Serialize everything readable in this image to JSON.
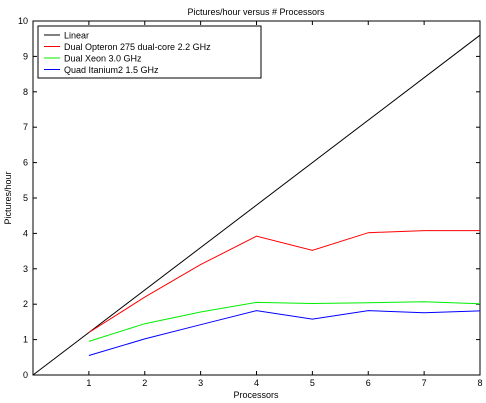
{
  "chart_data": {
    "type": "line",
    "title": "Pictures/hour versus # Processors",
    "xlabel": "Processors",
    "ylabel": "Pictures/hour",
    "xlim": [
      0,
      8
    ],
    "ylim": [
      0,
      10
    ],
    "xticks": [
      1,
      2,
      3,
      4,
      5,
      6,
      7,
      8
    ],
    "yticks": [
      0,
      1,
      2,
      3,
      4,
      5,
      6,
      7,
      8,
      9,
      10
    ],
    "grid": false,
    "legend_position": "top-left",
    "series": [
      {
        "name": "Linear",
        "color": "#000000",
        "x": [
          0,
          8
        ],
        "y": [
          0,
          9.6
        ]
      },
      {
        "name": "Dual Opteron 275 dual-core 2.2 GHz",
        "color": "#ff0000",
        "x": [
          1,
          2,
          3,
          4,
          5,
          6,
          7,
          8
        ],
        "y": [
          1.2,
          2.2,
          3.12,
          3.92,
          3.52,
          4.02,
          4.08,
          4.08
        ]
      },
      {
        "name": "Dual Xeon 3.0 GHz",
        "color": "#00ee00",
        "x": [
          1,
          2,
          3,
          4,
          5,
          6,
          7,
          8
        ],
        "y": [
          0.95,
          1.45,
          1.78,
          2.05,
          2.02,
          2.04,
          2.07,
          2.01
        ]
      },
      {
        "name": "Quad Itanium2 1.5 GHz",
        "color": "#0000ff",
        "x": [
          1,
          2,
          3,
          4,
          5,
          6,
          7,
          8
        ],
        "y": [
          0.55,
          1.02,
          1.42,
          1.82,
          1.58,
          1.82,
          1.76,
          1.81
        ]
      }
    ]
  }
}
